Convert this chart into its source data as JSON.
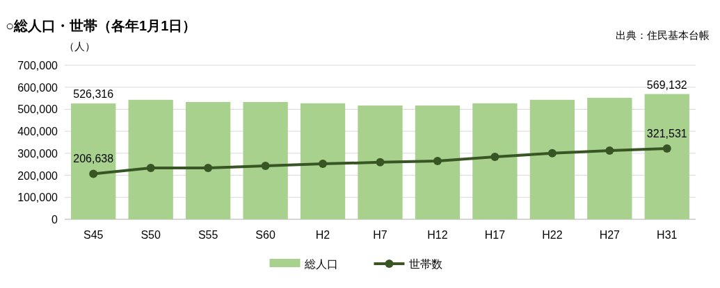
{
  "chart_data": {
    "type": "bar",
    "title": "○総人口・世帯（各年1月1日）",
    "ylabel": "（人）",
    "annotations": [
      "出典：住民基本台帳"
    ],
    "categories": [
      "S45",
      "S50",
      "S55",
      "S60",
      "H2",
      "H7",
      "H12",
      "H17",
      "H22",
      "H27",
      "H31"
    ],
    "series": [
      {
        "name": "総人口",
        "color": "#a9d18e",
        "values": [
          526316,
          543000,
          533000,
          533000,
          527000,
          517000,
          517000,
          527000,
          543000,
          552000,
          569132
        ],
        "value_labels": [
          "526,316",
          null,
          null,
          null,
          null,
          null,
          null,
          null,
          null,
          null,
          "569,132"
        ]
      },
      {
        "name": "世帯数",
        "type": "line",
        "color": "#375623",
        "marker": "circle",
        "values": [
          206638,
          233000,
          233000,
          243000,
          252000,
          259000,
          265000,
          284000,
          300000,
          312000,
          321531
        ],
        "value_labels": [
          "206,638",
          null,
          null,
          null,
          null,
          null,
          null,
          null,
          null,
          null,
          "321,531"
        ]
      }
    ],
    "ylim": [
      0,
      700000
    ],
    "yticks": [
      {
        "value": 0,
        "label": "0"
      },
      {
        "value": 100000,
        "label": "100,000"
      },
      {
        "value": 200000,
        "label": "200,000"
      },
      {
        "value": 300000,
        "label": "300,000"
      },
      {
        "value": 400000,
        "label": "400,000"
      },
      {
        "value": 500000,
        "label": "500,000"
      },
      {
        "value": 600000,
        "label": "600,000"
      },
      {
        "value": 700000,
        "label": "700,000"
      }
    ],
    "grid": "y",
    "legend": "bottom"
  }
}
